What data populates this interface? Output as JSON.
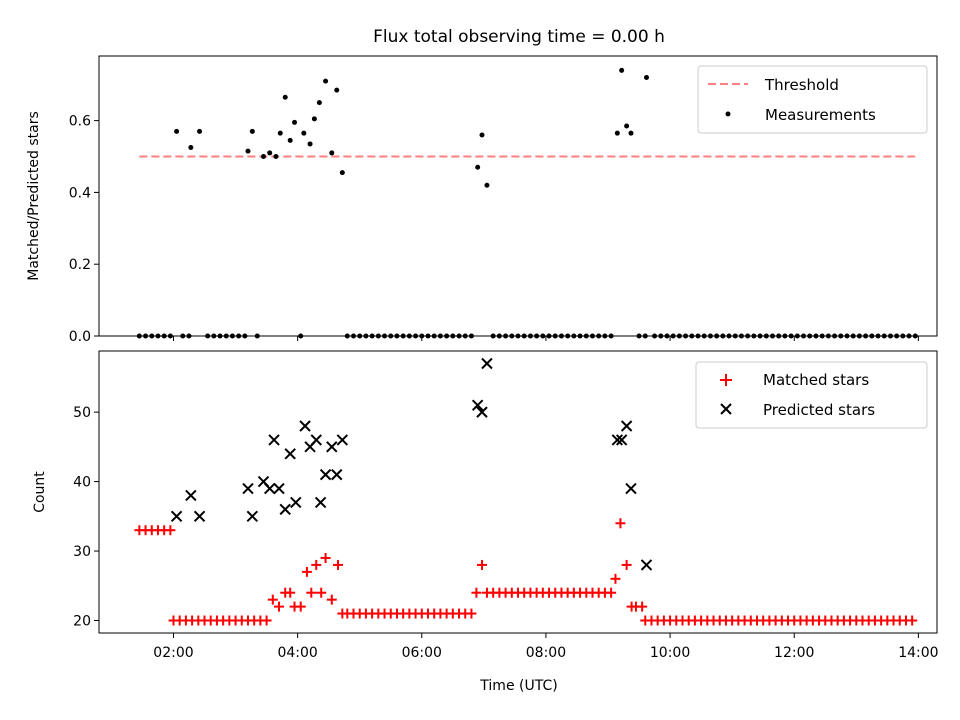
{
  "figure": {
    "title": "Flux total observing time = 0.00 h"
  },
  "x_axis": {
    "label": "Time (UTC)",
    "domain_hours": [
      0.8,
      14.3
    ],
    "ticks": [
      {
        "value": 2,
        "label": "02:00"
      },
      {
        "value": 4,
        "label": "04:00"
      },
      {
        "value": 6,
        "label": "06:00"
      },
      {
        "value": 8,
        "label": "08:00"
      },
      {
        "value": 10,
        "label": "10:00"
      },
      {
        "value": 12,
        "label": "12:00"
      },
      {
        "value": 14,
        "label": "14:00"
      }
    ]
  },
  "chart_data": [
    {
      "type": "scatter",
      "title": "Flux total observing time = 0.00 h",
      "ylabel": "Matched/Predicted stars",
      "xlabel": "",
      "ylim": [
        0,
        0.78
      ],
      "yticks": [
        {
          "value": 0.0,
          "label": "0.0"
        },
        {
          "value": 0.2,
          "label": "0.2"
        },
        {
          "value": 0.4,
          "label": "0.4"
        },
        {
          "value": 0.6,
          "label": "0.6"
        }
      ],
      "grid": false,
      "legend_position": "top-right",
      "threshold": {
        "name": "Threshold",
        "value": 0.5,
        "x_range": [
          1.45,
          13.95
        ],
        "color": "#ff7f7f",
        "style": "dashed"
      },
      "series": [
        {
          "name": "Measurements",
          "color": "#000000",
          "marker": "dot",
          "zero_runs": [
            [
              1.45,
              2.0
            ],
            [
              2.15,
              2.25
            ],
            [
              2.55,
              3.15
            ],
            [
              3.35,
              3.38
            ],
            [
              4.05,
              4.08
            ],
            [
              4.8,
              6.85
            ],
            [
              7.15,
              9.1
            ],
            [
              9.5,
              9.6
            ],
            [
              9.75,
              13.95
            ]
          ],
          "zero_step": 0.1,
          "points": [
            [
              2.05,
              0.57
            ],
            [
              2.28,
              0.525
            ],
            [
              2.42,
              0.57
            ],
            [
              3.2,
              0.515
            ],
            [
              3.27,
              0.57
            ],
            [
              3.45,
              0.5
            ],
            [
              3.55,
              0.51
            ],
            [
              3.65,
              0.5
            ],
            [
              3.72,
              0.565
            ],
            [
              3.8,
              0.665
            ],
            [
              3.88,
              0.545
            ],
            [
              3.95,
              0.595
            ],
            [
              4.1,
              0.565
            ],
            [
              4.2,
              0.535
            ],
            [
              4.27,
              0.605
            ],
            [
              4.35,
              0.65
            ],
            [
              4.45,
              0.71
            ],
            [
              4.55,
              0.51
            ],
            [
              4.63,
              0.685
            ],
            [
              4.72,
              0.455
            ],
            [
              6.9,
              0.47
            ],
            [
              6.97,
              0.56
            ],
            [
              7.05,
              0.42
            ],
            [
              9.15,
              0.565
            ],
            [
              9.22,
              0.74
            ],
            [
              9.3,
              0.585
            ],
            [
              9.37,
              0.565
            ],
            [
              9.62,
              0.72
            ]
          ]
        }
      ]
    },
    {
      "type": "scatter",
      "title": "",
      "ylabel": "Count",
      "xlabel": "Time (UTC)",
      "ylim": [
        18.2,
        58.8
      ],
      "yticks": [
        {
          "value": 20,
          "label": "20"
        },
        {
          "value": 30,
          "label": "30"
        },
        {
          "value": 40,
          "label": "40"
        },
        {
          "value": 50,
          "label": "50"
        }
      ],
      "grid": false,
      "legend_position": "top-right",
      "series": [
        {
          "name": "Matched stars",
          "color": "#ff0000",
          "marker": "plus",
          "runs": [
            {
              "from": 1.45,
              "to": 1.95,
              "value": 33
            },
            {
              "from": 2.0,
              "to": 3.55,
              "value": 20
            },
            {
              "from": 4.8,
              "to": 6.8,
              "value": 21
            },
            {
              "from": 7.15,
              "to": 9.05,
              "value": 24
            },
            {
              "from": 9.6,
              "to": 13.95,
              "value": 20
            }
          ],
          "run_step": 0.1,
          "points": [
            [
              3.6,
              23
            ],
            [
              3.7,
              22
            ],
            [
              3.8,
              24
            ],
            [
              3.88,
              24
            ],
            [
              3.95,
              22
            ],
            [
              4.05,
              22
            ],
            [
              4.15,
              27
            ],
            [
              4.22,
              24
            ],
            [
              4.3,
              28
            ],
            [
              4.38,
              24
            ],
            [
              4.45,
              29
            ],
            [
              4.55,
              23
            ],
            [
              4.65,
              28
            ],
            [
              4.72,
              21
            ],
            [
              6.88,
              24
            ],
            [
              6.97,
              28
            ],
            [
              7.05,
              24
            ],
            [
              9.12,
              26
            ],
            [
              9.2,
              34
            ],
            [
              9.3,
              28
            ],
            [
              9.38,
              22
            ],
            [
              9.45,
              22
            ],
            [
              9.55,
              22
            ]
          ]
        },
        {
          "name": "Predicted stars",
          "color": "#000000",
          "marker": "x",
          "points": [
            [
              2.05,
              35
            ],
            [
              2.28,
              38
            ],
            [
              2.42,
              35
            ],
            [
              3.2,
              39
            ],
            [
              3.27,
              35
            ],
            [
              3.45,
              40
            ],
            [
              3.55,
              39
            ],
            [
              3.62,
              46
            ],
            [
              3.7,
              39
            ],
            [
              3.8,
              36
            ],
            [
              3.88,
              44
            ],
            [
              3.97,
              37
            ],
            [
              4.12,
              48
            ],
            [
              4.2,
              45
            ],
            [
              4.3,
              46
            ],
            [
              4.37,
              37
            ],
            [
              4.45,
              41
            ],
            [
              4.55,
              45
            ],
            [
              4.63,
              41
            ],
            [
              4.72,
              46
            ],
            [
              6.9,
              51
            ],
            [
              6.97,
              50
            ],
            [
              7.05,
              57
            ],
            [
              9.15,
              46
            ],
            [
              9.22,
              46
            ],
            [
              9.3,
              48
            ],
            [
              9.37,
              39
            ],
            [
              9.62,
              28
            ]
          ]
        }
      ]
    }
  ]
}
